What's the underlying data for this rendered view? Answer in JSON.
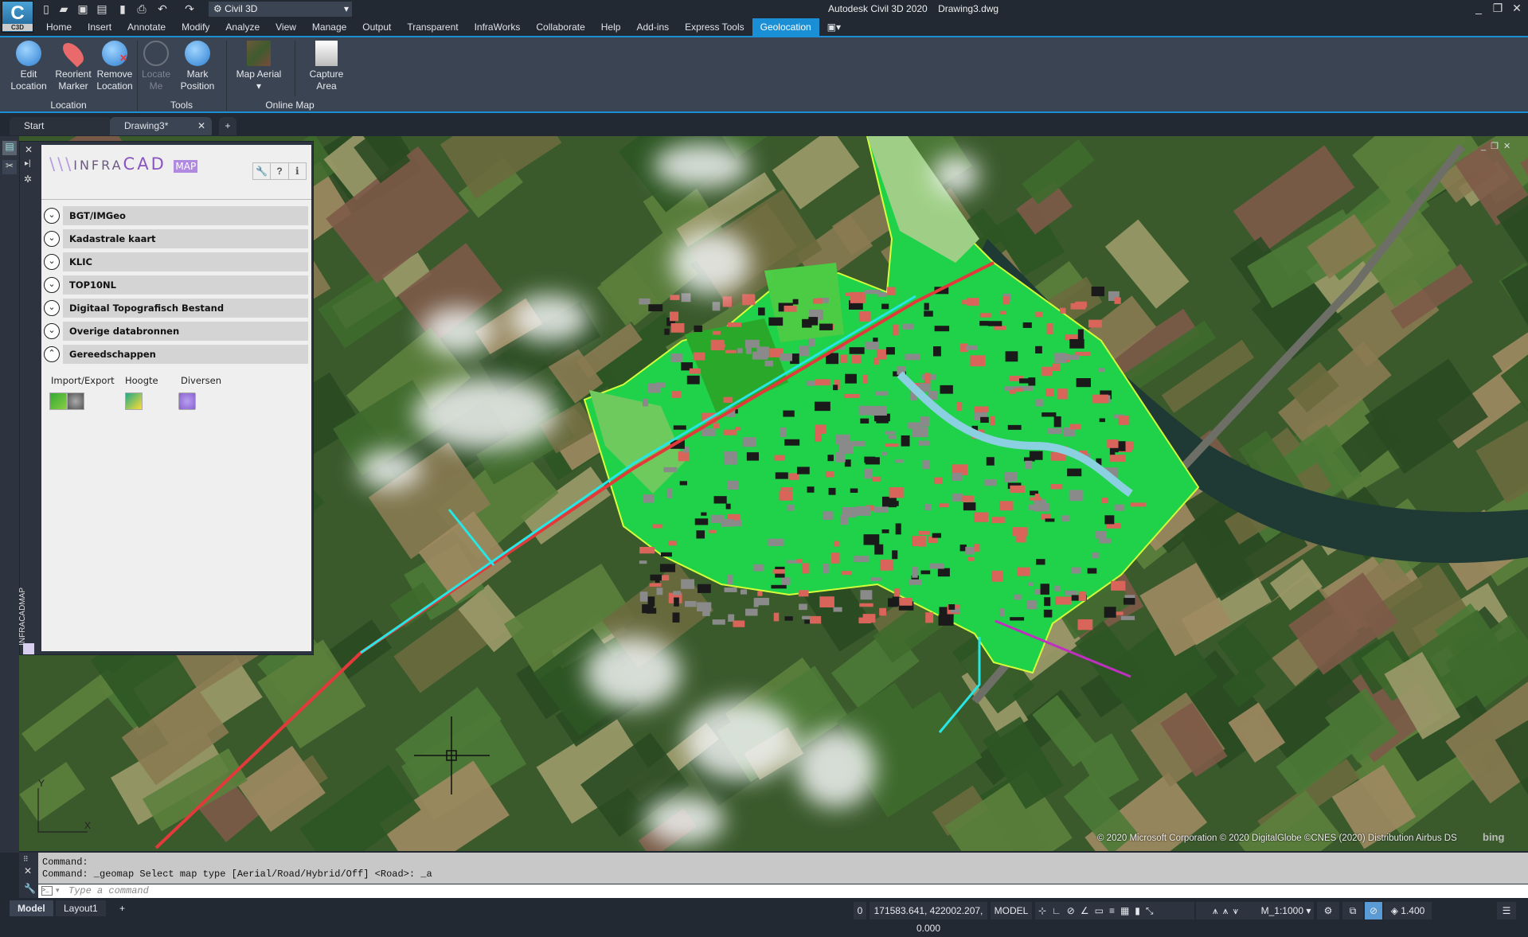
{
  "app": {
    "logo_text": "C",
    "logo_sub": "C3D",
    "title": "Autodesk Civil 3D 2020    Drawing3.dwg",
    "workspace": "Civil 3D"
  },
  "quick_access": [
    "new-icon",
    "open-icon",
    "save-icon",
    "save-as-icon",
    "open-from-cloud-icon",
    "plot-icon",
    "undo-icon",
    "redo-icon"
  ],
  "menu": {
    "tabs": [
      "Home",
      "Insert",
      "Annotate",
      "Modify",
      "Analyze",
      "View",
      "Manage",
      "Output",
      "Transparent",
      "InfraWorks",
      "Collaborate",
      "Help",
      "Add-ins",
      "Express Tools",
      "Geolocation"
    ],
    "active": "Geolocation"
  },
  "ribbon": {
    "panels": [
      {
        "name": "Location",
        "buttons": [
          {
            "label": "Edit\nLocation",
            "l1": "Edit",
            "l2": "Location"
          },
          {
            "l1": "Reorient",
            "l2": "Marker"
          },
          {
            "l1": "Remove",
            "l2": "Location"
          }
        ]
      },
      {
        "name": "Tools",
        "buttons": [
          {
            "l1": "Locate",
            "l2": "Me",
            "disabled": true
          },
          {
            "l1": "Mark",
            "l2": "Position"
          }
        ]
      },
      {
        "name": "Online Map",
        "buttons": [
          {
            "l1": "Map Aerial",
            "l2": ""
          },
          {
            "l1": "Capture",
            "l2": "Area"
          }
        ]
      }
    ]
  },
  "doc_tabs": [
    {
      "label": "Start"
    },
    {
      "label": "Drawing3*",
      "active": true
    }
  ],
  "infracad": {
    "logo": "INFRACAD MAP",
    "header_buttons": [
      "wrench-icon",
      "help-icon",
      "info-icon"
    ],
    "sections": [
      {
        "label": "BGT/IMGeo",
        "expanded": false
      },
      {
        "label": "Kadastrale kaart",
        "expanded": false
      },
      {
        "label": "KLIC",
        "expanded": false
      },
      {
        "label": "TOP10NL",
        "expanded": false
      },
      {
        "label": "Digitaal Topografisch Bestand",
        "expanded": false
      },
      {
        "label": "Overige databronnen",
        "expanded": false
      },
      {
        "label": "Gereedschappen",
        "expanded": true
      }
    ],
    "tool_groups": [
      {
        "label": "Import/Export"
      },
      {
        "label": "Hoogte"
      },
      {
        "label": "Diversen"
      }
    ],
    "side_label": "INFRACADMAP"
  },
  "map": {
    "attribution": "© 2020 Microsoft Corporation © 2020 DigitalGlobe ©CNES (2020) Distribution Airbus DS",
    "provider": "bing",
    "ucs_x": "X",
    "ucs_y": "Y"
  },
  "command": {
    "history": [
      "Command:",
      "Command: _geomap Select map type [Aerial/Road/Hybrid/Off] <Road>: _a"
    ],
    "placeholder": "Type a command"
  },
  "layout_tabs": [
    "Model",
    "Layout1"
  ],
  "status": {
    "layer": "0",
    "coords": "171583.641, 422002.207, 0.000",
    "space": "MODEL",
    "scale": "M_1:1000",
    "lineweight": "1.400"
  }
}
